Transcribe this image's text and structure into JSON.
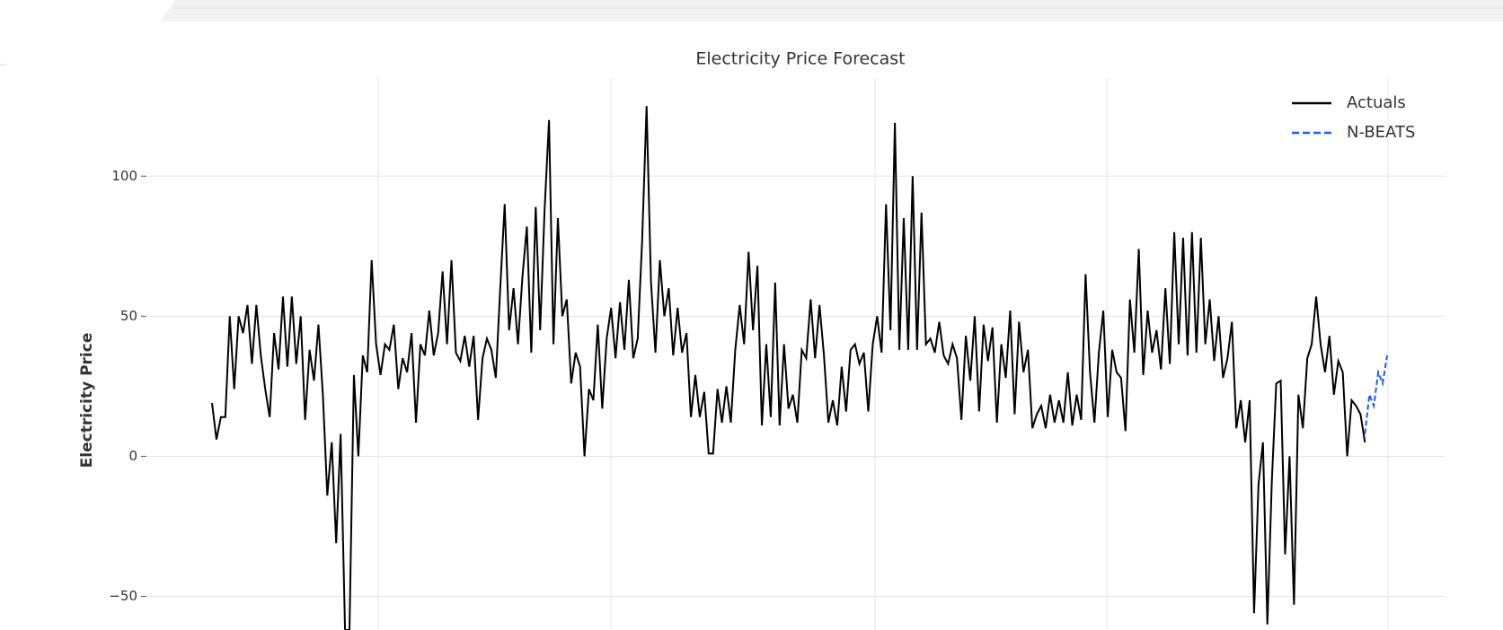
{
  "chart_data": {
    "type": "line",
    "title": "Electricity Price Forecast",
    "ylabel": "Electricity Price",
    "ylim": [
      -62,
      135
    ],
    "yticks": [
      {
        "value": -50,
        "label": "−50"
      },
      0,
      50,
      100
    ],
    "grid": true,
    "legend": "upper right",
    "series": [
      {
        "name": "Actuals",
        "color": "#000000",
        "dash": "solid",
        "values": [
          19,
          6,
          14,
          14,
          50,
          24,
          50,
          44,
          54,
          33,
          54,
          36,
          24,
          14,
          44,
          31,
          57,
          32,
          57,
          33,
          50,
          13,
          38,
          27,
          47,
          22,
          -14,
          5,
          -31,
          8,
          -62,
          -62,
          29,
          0,
          36,
          30,
          70,
          40,
          29,
          40,
          38,
          47,
          24,
          35,
          30,
          44,
          12,
          40,
          36,
          52,
          36,
          44,
          66,
          40,
          70,
          37,
          34,
          43,
          32,
          43,
          13,
          35,
          42,
          38,
          28,
          60,
          90,
          45,
          60,
          40,
          64,
          82,
          37,
          89,
          45,
          88,
          120,
          40,
          85,
          50,
          56,
          26,
          37,
          32,
          0,
          24,
          20,
          47,
          17,
          42,
          53,
          35,
          55,
          38,
          63,
          35,
          42,
          77,
          125,
          62,
          37,
          70,
          50,
          60,
          36,
          53,
          37,
          44,
          14,
          29,
          14,
          23,
          1,
          1,
          24,
          12,
          25,
          12,
          38,
          54,
          40,
          73,
          45,
          68,
          11,
          40,
          14,
          62,
          11,
          40,
          17,
          22,
          12,
          38,
          35,
          56,
          35,
          54,
          36,
          12,
          20,
          11,
          32,
          16,
          38,
          40,
          33,
          37,
          16,
          40,
          50,
          37,
          90,
          45,
          119,
          38,
          85,
          38,
          100,
          38,
          87,
          40,
          42,
          37,
          48,
          36,
          33,
          40,
          35,
          13,
          43,
          27,
          50,
          16,
          47,
          34,
          46,
          12,
          40,
          28,
          52,
          15,
          48,
          30,
          38,
          10,
          15,
          18,
          10,
          22,
          12,
          20,
          12,
          30,
          11,
          22,
          13,
          65,
          30,
          12,
          37,
          52,
          14,
          38,
          30,
          28,
          9,
          56,
          37,
          74,
          29,
          52,
          37,
          45,
          31,
          60,
          33,
          80,
          40,
          78,
          36,
          80,
          37,
          78,
          40,
          56,
          34,
          50,
          28,
          35,
          48,
          10,
          20,
          5,
          20,
          -56,
          -10,
          5,
          -60,
          -9,
          26,
          27,
          -35,
          0,
          -53,
          22,
          10,
          35,
          40,
          57,
          40,
          30,
          43,
          22,
          34,
          30,
          0,
          20,
          18,
          15,
          5,
          null,
          null,
          null,
          null,
          null
        ]
      },
      {
        "name": "N-BEATS",
        "color": "#1f5cff",
        "dash": "dashed",
        "values": [
          null,
          null,
          null,
          null,
          null,
          null,
          null,
          null,
          null,
          null,
          null,
          null,
          null,
          null,
          null,
          null,
          null,
          null,
          null,
          null,
          null,
          null,
          null,
          null,
          null,
          null,
          null,
          null,
          null,
          null,
          null,
          null,
          null,
          null,
          null,
          null,
          null,
          null,
          null,
          null,
          null,
          null,
          null,
          null,
          null,
          null,
          null,
          null,
          null,
          null,
          null,
          null,
          null,
          null,
          null,
          null,
          null,
          null,
          null,
          null,
          null,
          null,
          null,
          null,
          null,
          null,
          null,
          null,
          null,
          null,
          null,
          null,
          null,
          null,
          null,
          null,
          null,
          null,
          null,
          null,
          null,
          null,
          null,
          null,
          null,
          null,
          null,
          null,
          null,
          null,
          null,
          null,
          null,
          null,
          null,
          null,
          null,
          null,
          null,
          null,
          null,
          null,
          null,
          null,
          null,
          null,
          null,
          null,
          null,
          null,
          null,
          null,
          null,
          null,
          null,
          null,
          null,
          null,
          null,
          null,
          null,
          null,
          null,
          null,
          null,
          null,
          null,
          null,
          null,
          null,
          null,
          null,
          null,
          null,
          null,
          null,
          null,
          null,
          null,
          null,
          null,
          null,
          null,
          null,
          null,
          null,
          null,
          null,
          null,
          null,
          null,
          null,
          null,
          null,
          null,
          null,
          null,
          null,
          null,
          null,
          null,
          null,
          null,
          null,
          null,
          null,
          null,
          null,
          null,
          null,
          null,
          null,
          null,
          null,
          null,
          null,
          null,
          null,
          null,
          null,
          null,
          null,
          null,
          null,
          null,
          null,
          null,
          null,
          null,
          null,
          null,
          null,
          null,
          null,
          null,
          null,
          null,
          null,
          null,
          null,
          null,
          null,
          null,
          null,
          null,
          null,
          null,
          null,
          null,
          null,
          null,
          null,
          null,
          null,
          null,
          null,
          null,
          null,
          null,
          null,
          null,
          null,
          null,
          null,
          null,
          null,
          null,
          null,
          null,
          null,
          null,
          null,
          null,
          null,
          null,
          null,
          null,
          null,
          null,
          null,
          null,
          null,
          null,
          null,
          null,
          null,
          null,
          null,
          null,
          null,
          null,
          null,
          null,
          null,
          null,
          null,
          null,
          null,
          null,
          null,
          8,
          22,
          18,
          30,
          26,
          36
        ]
      }
    ]
  }
}
